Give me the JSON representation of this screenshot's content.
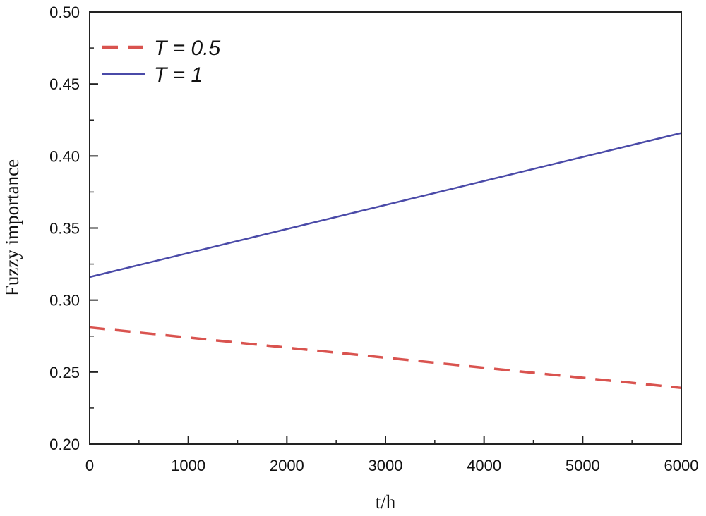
{
  "chart_data": {
    "type": "line",
    "xlabel": "t/h",
    "ylabel": "Fuzzy importance",
    "xlim": [
      0,
      6000
    ],
    "ylim": [
      0.2,
      0.5
    ],
    "xticks": [
      "0",
      "1000",
      "2000",
      "3000",
      "4000",
      "5000",
      "6000"
    ],
    "yticks": [
      "0.20",
      "0.25",
      "0.30",
      "0.35",
      "0.40",
      "0.45",
      "0.50"
    ],
    "grid": false,
    "legend_position": "top-left",
    "series": [
      {
        "name": "T = 0.5",
        "color": "#d9534f",
        "style": "dashed",
        "x": [
          0,
          6000
        ],
        "y": [
          0.281,
          0.239
        ]
      },
      {
        "name": "T = 1",
        "color": "#4a4aa8",
        "style": "solid",
        "x": [
          0,
          6000
        ],
        "y": [
          0.316,
          0.416
        ]
      }
    ]
  }
}
